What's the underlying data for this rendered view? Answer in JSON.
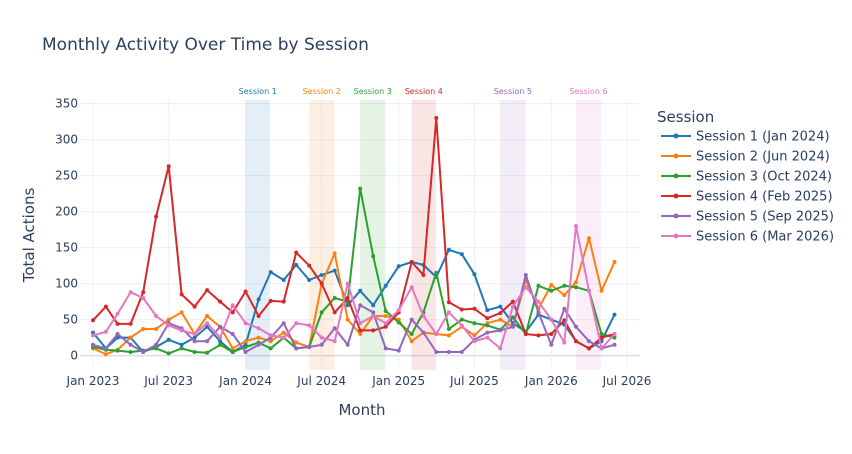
{
  "chart_data": {
    "type": "line",
    "title": "Monthly Activity Over Time by Session",
    "xlabel": "Month",
    "ylabel": "Total Actions",
    "x_ticks": [
      "Jan 2023",
      "Jul 2023",
      "Jan 2024",
      "Jul 2024",
      "Jan 2025",
      "Jul 2025",
      "Jan 2026",
      "Jul 2026"
    ],
    "y_ticks": [
      0,
      50,
      100,
      150,
      200,
      250,
      300,
      350
    ],
    "xlim": [
      "2022-12-01",
      "2026-08-01"
    ],
    "ylim": [
      -20,
      355
    ],
    "grid": true,
    "legend": {
      "title": "Session",
      "placement": "right"
    },
    "months": [
      "2023-01",
      "2023-02",
      "2023-03",
      "2023-04",
      "2023-05",
      "2023-06",
      "2023-07",
      "2023-08",
      "2023-09",
      "2023-10",
      "2023-11",
      "2023-12",
      "2024-01",
      "2024-02",
      "2024-03",
      "2024-04",
      "2024-05",
      "2024-06",
      "2024-07",
      "2024-08",
      "2024-09",
      "2024-10",
      "2024-11",
      "2024-12",
      "2025-01",
      "2025-02",
      "2025-03",
      "2025-04",
      "2025-05",
      "2025-06",
      "2025-07",
      "2025-08",
      "2025-09",
      "2025-10",
      "2025-11",
      "2025-12",
      "2026-01",
      "2026-02",
      "2026-03",
      "2026-04",
      "2026-05",
      "2026-06"
    ],
    "series": [
      {
        "name": "Session 1 (Jan 2024)",
        "color": "#1f77b4",
        "values": [
          32,
          10,
          25,
          25,
          5,
          12,
          22,
          15,
          25,
          40,
          20,
          5,
          15,
          78,
          116,
          105,
          126,
          105,
          112,
          118,
          70,
          90,
          70,
          97,
          124,
          130,
          126,
          109,
          147,
          141,
          113,
          63,
          68,
          45,
          33,
          57,
          50,
          43,
          20,
          10,
          20,
          57
        ]
      },
      {
        "name": "Session 2 (Jun 2024)",
        "color": "#ff7f0e",
        "values": [
          10,
          2,
          8,
          25,
          37,
          37,
          50,
          60,
          30,
          55,
          40,
          10,
          20,
          25,
          20,
          32,
          18,
          12,
          100,
          142,
          50,
          30,
          55,
          55,
          50,
          20,
          32,
          30,
          28,
          40,
          28,
          45,
          50,
          40,
          105,
          65,
          98,
          84,
          102,
          163,
          90,
          130
        ]
      },
      {
        "name": "Session 3 (Oct 2024)",
        "color": "#2ca02c",
        "values": [
          12,
          8,
          7,
          5,
          7,
          10,
          3,
          10,
          5,
          4,
          15,
          5,
          12,
          18,
          10,
          25,
          10,
          12,
          60,
          80,
          75,
          232,
          138,
          62,
          46,
          30,
          60,
          115,
          37,
          50,
          45,
          42,
          36,
          53,
          30,
          97,
          90,
          97,
          95,
          90,
          30,
          25
        ]
      },
      {
        "name": "Session 4 (Feb 2025)",
        "color": "#d62728",
        "values": [
          49,
          68,
          44,
          44,
          88,
          193,
          263,
          85,
          68,
          91,
          75,
          60,
          89,
          55,
          76,
          75,
          143,
          125,
          100,
          60,
          80,
          35,
          35,
          40,
          60,
          130,
          112,
          330,
          74,
          64,
          65,
          52,
          59,
          75,
          30,
          28,
          30,
          49,
          20,
          10,
          25,
          30
        ]
      },
      {
        "name": "Session 5 (Sep 2025)",
        "color": "#9467bd",
        "values": [
          15,
          10,
          30,
          15,
          5,
          15,
          45,
          38,
          20,
          20,
          40,
          30,
          5,
          15,
          25,
          45,
          10,
          12,
          15,
          38,
          15,
          70,
          60,
          10,
          7,
          50,
          32,
          5,
          5,
          5,
          22,
          32,
          35,
          40,
          112,
          60,
          15,
          65,
          40,
          20,
          10,
          15
        ]
      },
      {
        "name": "Session 6 (Mar 2026)",
        "color": "#e377c2",
        "values": [
          28,
          33,
          58,
          88,
          80,
          55,
          42,
          35,
          30,
          45,
          25,
          70,
          45,
          38,
          28,
          25,
          45,
          42,
          25,
          20,
          100,
          45,
          55,
          45,
          63,
          95,
          55,
          30,
          60,
          42,
          20,
          25,
          10,
          68,
          95,
          75,
          50,
          18,
          180,
          90,
          10,
          30
        ]
      }
    ],
    "sessions": [
      {
        "label": "Session 1",
        "color": "#1f77b4",
        "start": "2024-01-01",
        "end": "2024-02-28"
      },
      {
        "label": "Session 2",
        "color": "#ff7f0e",
        "start": "2024-06-01",
        "end": "2024-07-31"
      },
      {
        "label": "Session 3",
        "color": "#2ca02c",
        "start": "2024-10-01",
        "end": "2024-11-30"
      },
      {
        "label": "Session 4",
        "color": "#d62728",
        "start": "2025-02-01",
        "end": "2025-03-31"
      },
      {
        "label": "Session 5",
        "color": "#9467bd",
        "start": "2025-09-01",
        "end": "2025-10-31"
      },
      {
        "label": "Session 6",
        "color": "#e377c2",
        "start": "2026-03-01",
        "end": "2026-04-30"
      }
    ]
  }
}
